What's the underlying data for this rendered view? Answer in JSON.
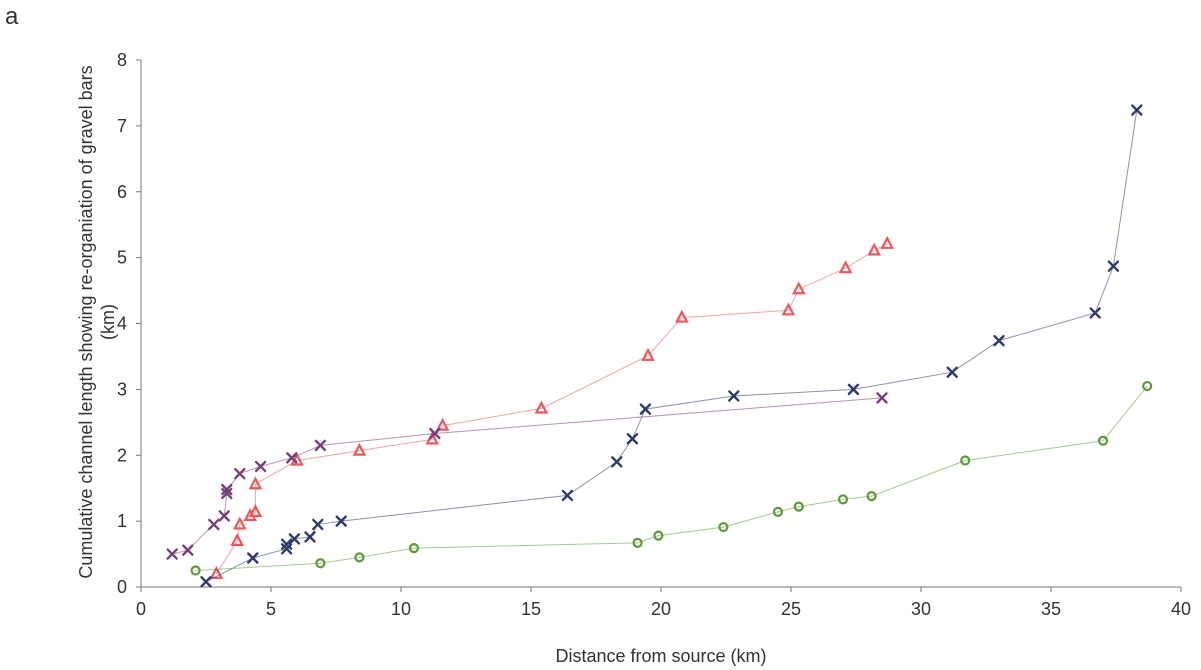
{
  "panel_label": "a",
  "chart_data": {
    "type": "scatter",
    "xlabel": "Distance from source (km)",
    "ylabel_lines": [
      "Cumulative channel length showing re-organiation of gravel bars",
      "(km)"
    ],
    "xlim": [
      0,
      40
    ],
    "ylim": [
      0,
      8
    ],
    "x_ticks": [
      0,
      5,
      10,
      15,
      20,
      25,
      30,
      35,
      40
    ],
    "y_ticks": [
      0,
      1,
      2,
      3,
      4,
      5,
      6,
      7,
      8
    ],
    "grid": false,
    "legend": "none",
    "series": [
      {
        "marker": "triangle",
        "color": "#e8585d",
        "points": [
          [
            2.9,
            0.2
          ],
          [
            3.7,
            0.7
          ],
          [
            3.8,
            0.95
          ],
          [
            4.2,
            1.08
          ],
          [
            4.4,
            1.14
          ],
          [
            4.4,
            1.56
          ],
          [
            6.0,
            1.92
          ],
          [
            8.4,
            2.07
          ],
          [
            11.2,
            2.24
          ],
          [
            11.6,
            2.45
          ],
          [
            15.4,
            2.71
          ],
          [
            19.5,
            3.51
          ],
          [
            20.8,
            4.09
          ],
          [
            24.9,
            4.2
          ],
          [
            25.3,
            4.52
          ],
          [
            27.1,
            4.84
          ],
          [
            28.2,
            5.11
          ],
          [
            28.7,
            5.21
          ]
        ]
      },
      {
        "marker": "x",
        "color": "#7a3f78",
        "points": [
          [
            1.2,
            0.5
          ],
          [
            1.8,
            0.56
          ],
          [
            2.8,
            0.95
          ],
          [
            3.2,
            1.08
          ],
          [
            3.3,
            1.42
          ],
          [
            3.3,
            1.48
          ],
          [
            3.8,
            1.72
          ],
          [
            4.6,
            1.83
          ],
          [
            5.8,
            1.96
          ],
          [
            6.9,
            2.15
          ],
          [
            11.3,
            2.33
          ],
          [
            28.5,
            2.87
          ]
        ]
      },
      {
        "marker": "x",
        "color": "#2d3a6b",
        "points": [
          [
            2.5,
            0.08
          ],
          [
            4.3,
            0.44
          ],
          [
            5.6,
            0.58
          ],
          [
            5.6,
            0.65
          ],
          [
            5.9,
            0.73
          ],
          [
            6.5,
            0.76
          ],
          [
            6.8,
            0.95
          ],
          [
            7.7,
            1.0
          ],
          [
            16.4,
            1.39
          ],
          [
            18.3,
            1.9
          ],
          [
            18.9,
            2.25
          ],
          [
            19.4,
            2.7
          ],
          [
            22.8,
            2.9
          ],
          [
            27.4,
            3.0
          ],
          [
            31.2,
            3.26
          ],
          [
            33.0,
            3.74
          ],
          [
            36.7,
            4.16
          ],
          [
            37.4,
            4.87
          ],
          [
            38.3,
            7.24
          ]
        ]
      },
      {
        "marker": "circle",
        "color": "#5e9a3a",
        "points": [
          [
            2.1,
            0.25
          ],
          [
            6.9,
            0.36
          ],
          [
            8.4,
            0.45
          ],
          [
            10.5,
            0.59
          ],
          [
            19.1,
            0.67
          ],
          [
            19.9,
            0.78
          ],
          [
            22.4,
            0.91
          ],
          [
            24.5,
            1.14
          ],
          [
            25.3,
            1.22
          ],
          [
            27.0,
            1.33
          ],
          [
            28.1,
            1.38
          ],
          [
            31.7,
            1.92
          ],
          [
            37.0,
            2.22
          ],
          [
            38.7,
            3.05
          ]
        ]
      }
    ]
  }
}
